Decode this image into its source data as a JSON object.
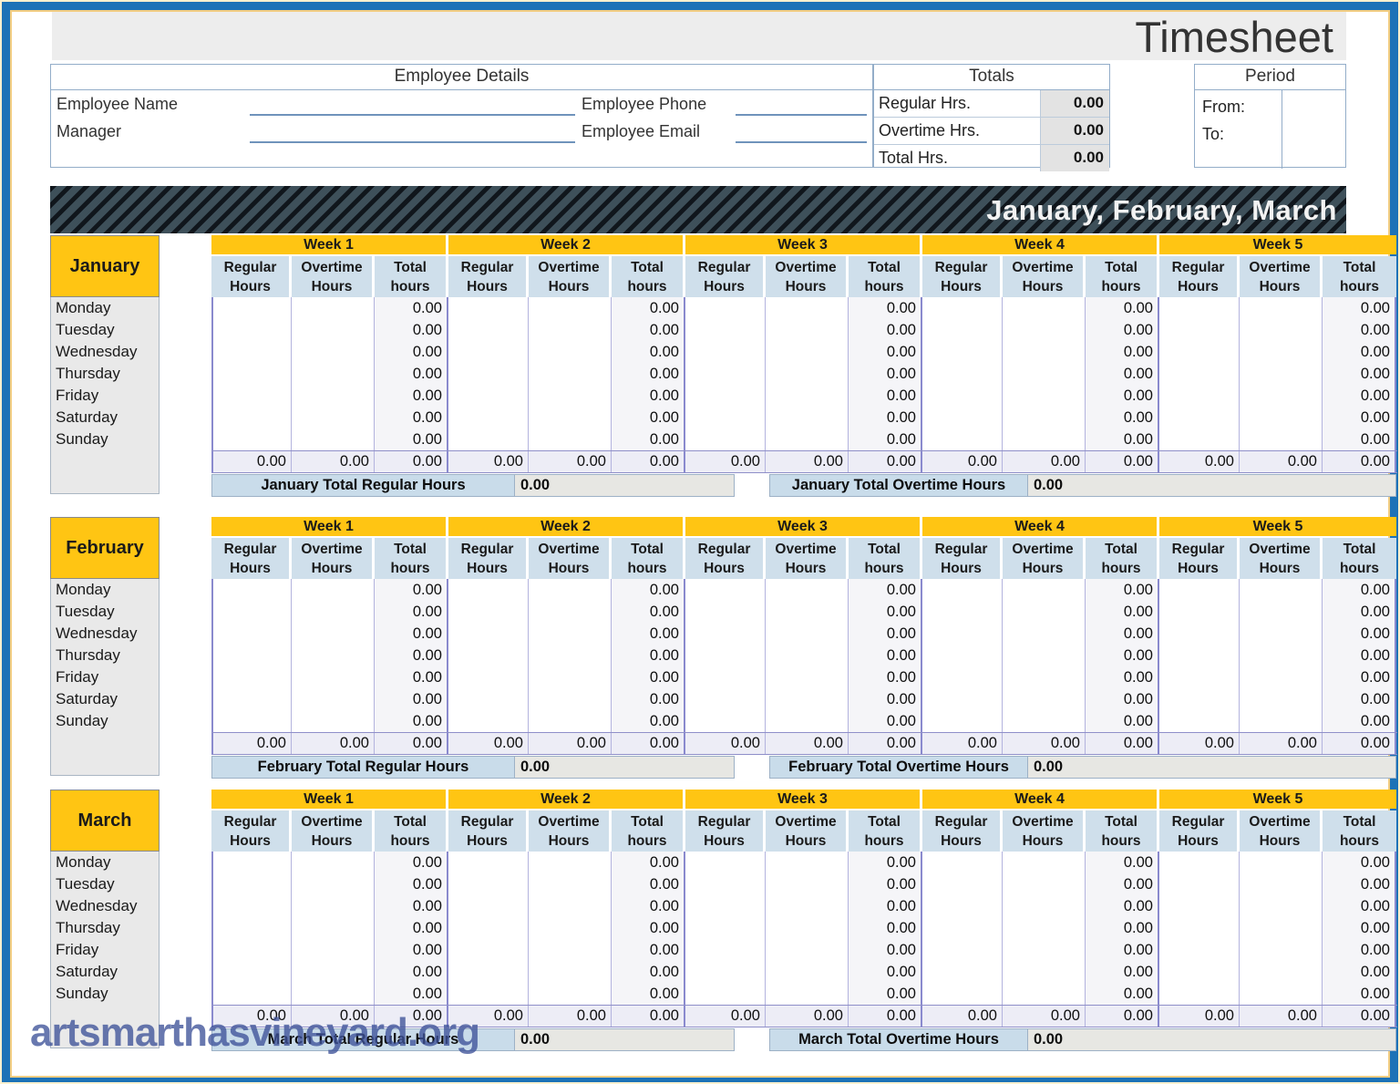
{
  "title": "Timesheet",
  "employee_details": {
    "header": "Employee Details",
    "fields": [
      {
        "label": "Employee Name",
        "value": ""
      },
      {
        "label": "Manager",
        "value": ""
      },
      {
        "label": "Employee Phone",
        "value": ""
      },
      {
        "label": "Employee Email",
        "value": ""
      }
    ]
  },
  "totals": {
    "header": "Totals",
    "rows": [
      {
        "label": "Regular Hrs.",
        "value": "0.00"
      },
      {
        "label": "Overtime Hrs.",
        "value": "0.00"
      },
      {
        "label": "Total Hrs.",
        "value": "0.00"
      }
    ]
  },
  "period": {
    "header": "Period",
    "from_label": "From:",
    "from_value": "",
    "to_label": "To:",
    "to_value": ""
  },
  "banner": {
    "title": "January, February, March"
  },
  "weeks": [
    "Week 1",
    "Week 2",
    "Week 3",
    "Week 4",
    "Week 5"
  ],
  "subcolumns": [
    "Regular Hours",
    "Overtime Hours",
    "Total hours"
  ],
  "days": [
    "Monday",
    "Tuesday",
    "Wednesday",
    "Thursday",
    "Friday",
    "Saturday",
    "Sunday"
  ],
  "zero": "0.00",
  "months": [
    {
      "name": "January",
      "day_total_value": "0.00",
      "week_sum_value": "0.00",
      "total_regular_label": "January Total Regular Hours",
      "total_regular_value": "0.00",
      "total_overtime_label": "January Total Overtime Hours",
      "total_overtime_value": "0.00"
    },
    {
      "name": "February",
      "day_total_value": "0.00",
      "week_sum_value": "0.00",
      "total_regular_label": "February Total Regular Hours",
      "total_regular_value": "0.00",
      "total_overtime_label": "February Total Overtime Hours",
      "total_overtime_value": "0.00"
    },
    {
      "name": "March",
      "day_total_value": "0.00",
      "week_sum_value": "0.00",
      "total_regular_label": "March Total Regular Hours",
      "total_regular_value": "0.00",
      "total_overtime_label": "March Total Overtime Hours",
      "total_overtime_value": "0.00"
    }
  ],
  "watermark": "artsmarthasvineyard.org",
  "colors": {
    "accent_yellow": "#ffc513",
    "banner_slate": "#3e505a",
    "banner_stripe": "#10161c",
    "frame_blue": "#1c72b7",
    "subheader_blue": "#cfdfeb",
    "grid_periwinkle": "#8a8ace",
    "month_total_label_bg": "#c9dcea",
    "month_total_value_bg": "#e7e7e3"
  }
}
